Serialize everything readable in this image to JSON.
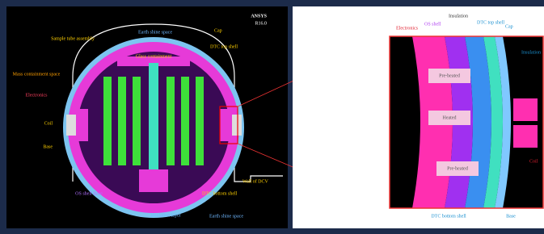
{
  "left_panel": {
    "logo": "ANSYS",
    "version": "R16.0",
    "labels": [
      "Earth shine space",
      "Cap",
      "Sample tube assembly",
      "Glass containment",
      "DTC top shell",
      "Mass containment space",
      "Electronics",
      "Coil",
      "Base",
      "OS shell Base",
      "DTC bottom shell",
      "Insulation layer",
      "Earth shine space",
      "Wall of DCV"
    ]
  },
  "right_panel": {
    "labels": [
      "Electronics",
      "OS shell",
      "Insulation",
      "DTC top shell",
      "Cap",
      "Insulation",
      "Pre-heated",
      "Heated",
      "Pre-heated",
      "Coil",
      "DTC bottom shell",
      "Base"
    ]
  }
}
